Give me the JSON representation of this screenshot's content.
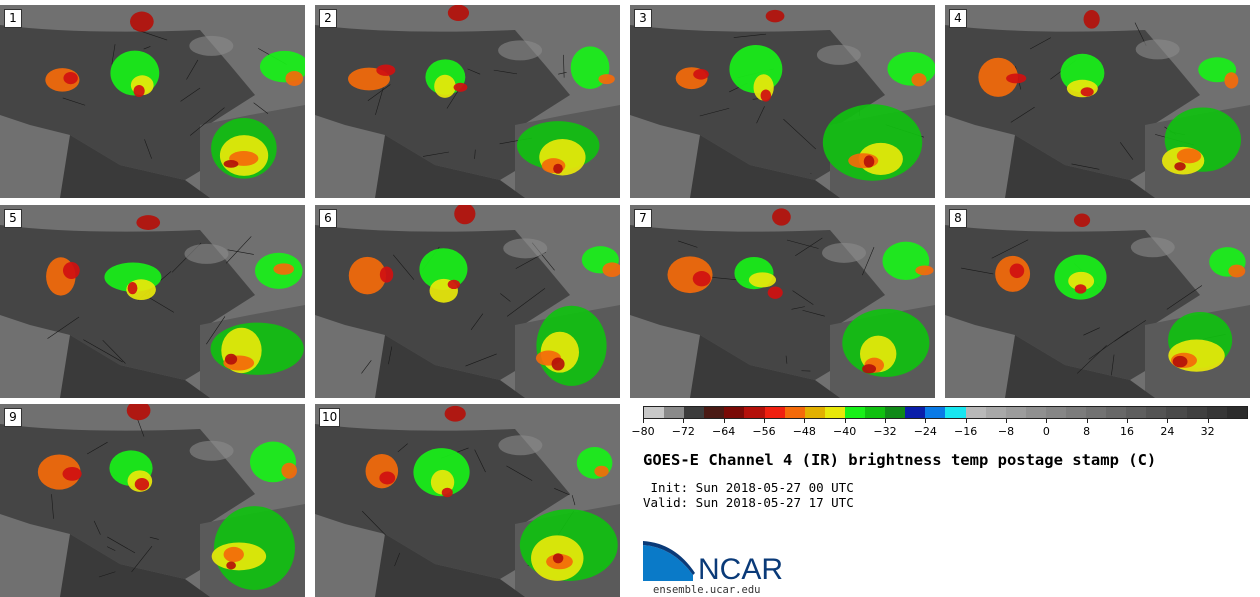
{
  "panels": [
    {
      "label": "1"
    },
    {
      "label": "2"
    },
    {
      "label": "3"
    },
    {
      "label": "4"
    },
    {
      "label": "5"
    },
    {
      "label": "6"
    },
    {
      "label": "7"
    },
    {
      "label": "8"
    },
    {
      "label": "9"
    },
    {
      "label": "10"
    }
  ],
  "colorbar": {
    "colors": [
      "#c8c8c8",
      "#8a8a8a",
      "#3c3c3c",
      "#4a1a14",
      "#7a0a06",
      "#b4100a",
      "#f02010",
      "#f46a0a",
      "#e2b000",
      "#e8e80a",
      "#18f018",
      "#10c010",
      "#108a18",
      "#0a1eaa",
      "#0a7ae6",
      "#18e6f0",
      "#b8b8b8",
      "#a8a8a8",
      "#9c9c9c",
      "#909090",
      "#868686",
      "#7c7c7c",
      "#727272",
      "#686868",
      "#5e5e5e",
      "#545454",
      "#4a4a4a",
      "#404040",
      "#363636",
      "#2c2c2c"
    ],
    "tick_labels": [
      "−80",
      "−72",
      "−64",
      "−56",
      "−48",
      "−40",
      "−32",
      "−24",
      "−16",
      "−8",
      "0",
      "8",
      "16",
      "24",
      "32"
    ]
  },
  "title": "GOES-E Channel 4 (IR) brightness temp postage stamp (C)",
  "init": " Init: Sun 2018-05-27 00 UTC",
  "valid": "Valid: Sun 2018-05-27 17 UTC",
  "logo": {
    "text": "NCAR",
    "color": "#0a3a78",
    "accent": "#0a7ac8"
  },
  "url": "ensemble.ucar.edu"
}
